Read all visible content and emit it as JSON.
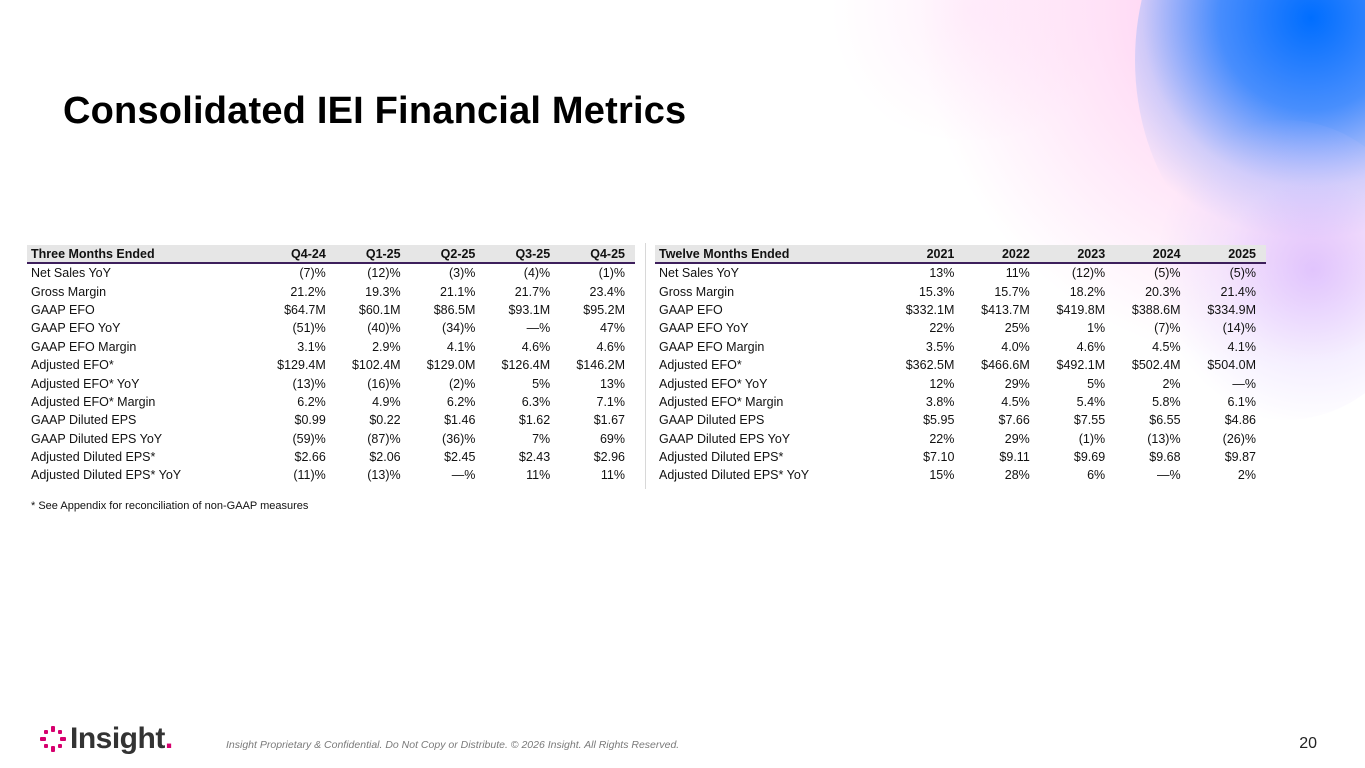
{
  "title": "Consolidated IEI Financial Metrics",
  "left_table": {
    "headers": [
      "Three Months Ended",
      "Q4-24",
      "Q1-25",
      "Q2-25",
      "Q3-25",
      "Q4-25"
    ],
    "rows": [
      [
        "Net Sales YoY",
        "(7)%",
        "(12)%",
        "(3)%",
        "(4)%",
        "(1)%"
      ],
      [
        "Gross Margin",
        "21.2%",
        "19.3%",
        "21.1%",
        "21.7%",
        "23.4%"
      ],
      [
        "GAAP EFO",
        "$64.7M",
        "$60.1M",
        "$86.5M",
        "$93.1M",
        "$95.2M"
      ],
      [
        "GAAP EFO YoY",
        "(51)%",
        "(40)%",
        "(34)%",
        "—%",
        "47%"
      ],
      [
        "GAAP EFO Margin",
        "3.1%",
        "2.9%",
        "4.1%",
        "4.6%",
        "4.6%"
      ],
      [
        "Adjusted EFO*",
        "$129.4M",
        "$102.4M",
        "$129.0M",
        "$126.4M",
        "$146.2M"
      ],
      [
        "Adjusted EFO* YoY",
        "(13)%",
        "(16)%",
        "(2)%",
        "5%",
        "13%"
      ],
      [
        "Adjusted EFO* Margin",
        "6.2%",
        "4.9%",
        "6.2%",
        "6.3%",
        "7.1%"
      ],
      [
        "GAAP Diluted EPS",
        "$0.99",
        "$0.22",
        "$1.46",
        "$1.62",
        "$1.67"
      ],
      [
        "GAAP Diluted EPS YoY",
        "(59)%",
        "(87)%",
        "(36)%",
        "7%",
        "69%"
      ],
      [
        "Adjusted Diluted EPS*",
        "$2.66",
        "$2.06",
        "$2.45",
        "$2.43",
        "$2.96"
      ],
      [
        "Adjusted Diluted EPS* YoY",
        "(11)%",
        "(13)%",
        "—%",
        "11%",
        "11%"
      ]
    ]
  },
  "right_table": {
    "headers": [
      "Twelve Months Ended",
      "2021",
      "2022",
      "2023",
      "2024",
      "2025"
    ],
    "rows": [
      [
        "Net Sales YoY",
        "13%",
        "11%",
        "(12)%",
        "(5)%",
        "(5)%"
      ],
      [
        "Gross Margin",
        "15.3%",
        "15.7%",
        "18.2%",
        "20.3%",
        "21.4%"
      ],
      [
        "GAAP EFO",
        "$332.1M",
        "$413.7M",
        "$419.8M",
        "$388.6M",
        "$334.9M"
      ],
      [
        "GAAP EFO YoY",
        "22%",
        "25%",
        "1%",
        "(7)%",
        "(14)%"
      ],
      [
        "GAAP EFO Margin",
        "3.5%",
        "4.0%",
        "4.6%",
        "4.5%",
        "4.1%"
      ],
      [
        "Adjusted EFO*",
        "$362.5M",
        "$466.6M",
        "$492.1M",
        "$502.4M",
        "$504.0M"
      ],
      [
        "Adjusted EFO* YoY",
        "12%",
        "29%",
        "5%",
        "2%",
        "—%"
      ],
      [
        "Adjusted EFO* Margin",
        "3.8%",
        "4.5%",
        "5.4%",
        "5.8%",
        "6.1%"
      ],
      [
        "GAAP Diluted EPS",
        "$5.95",
        "$7.66",
        "$7.55",
        "$6.55",
        "$4.86"
      ],
      [
        "GAAP Diluted EPS YoY",
        "22%",
        "29%",
        "(1)%",
        "(13)%",
        "(26)%"
      ],
      [
        "Adjusted Diluted EPS*",
        "$7.10",
        "$9.11",
        "$9.69",
        "$9.68",
        "$9.87"
      ],
      [
        "Adjusted Diluted EPS* YoY",
        "15%",
        "28%",
        "6%",
        "—%",
        "2%"
      ]
    ]
  },
  "footnote": "* See Appendix for reconciliation of non-GAAP measures",
  "footer": {
    "logo_text": "Insight",
    "logo_dot": ".",
    "confidential": "Insight Proprietary & Confidential. Do Not Copy or Distribute. © 2026 Insight. All Rights Reserved.",
    "page_number": "20"
  },
  "colors": {
    "accent_purple": "#3d1f5c",
    "logo_magenta": "#d6006e",
    "header_fill": "#e6e6e6"
  },
  "icons": [
    "insight-logo-icon"
  ]
}
